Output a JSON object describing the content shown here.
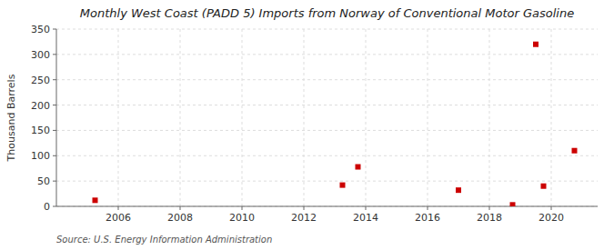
{
  "chart_data": {
    "type": "scatter",
    "title": "Monthly West Coast (PADD 5) Imports from Norway of Conventional Motor Gasoline",
    "y_label": "Thousand Barrels",
    "source": "Source: U.S. Energy Information Administration",
    "x": [
      2005.25,
      2013.25,
      2013.75,
      2017.0,
      2018.75,
      2019.5,
      2019.75,
      2020.75
    ],
    "values": [
      12,
      42,
      78,
      32,
      3,
      320,
      40,
      110
    ],
    "color": "#cc0000",
    "marker": "square",
    "xlim": [
      2004.0,
      2021.5
    ],
    "ylim": [
      0,
      350
    ],
    "xticks": [
      2006,
      2008,
      2010,
      2012,
      2014,
      2016,
      2018,
      2020
    ],
    "yticks": [
      0,
      50,
      100,
      150,
      200,
      250,
      300,
      350
    ],
    "grid": true
  }
}
